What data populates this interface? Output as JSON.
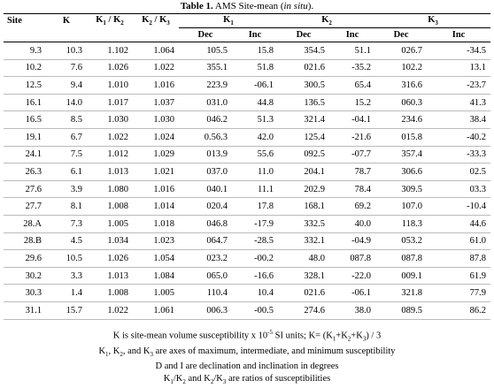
{
  "title": {
    "label": "Table 1.",
    "text": " AMS Site-mean (",
    "italic": "in situ",
    "end": ")."
  },
  "header": {
    "site": "Site",
    "k": "K",
    "ratio_12": [
      {
        "t": "K"
      },
      {
        "sub": "1"
      },
      {
        "t": " / K"
      },
      {
        "sub": "2"
      }
    ],
    "ratio_23": [
      {
        "t": "K"
      },
      {
        "sub": "2"
      },
      {
        "t": " / K"
      },
      {
        "sub": "3"
      }
    ],
    "k1": [
      {
        "t": "K"
      },
      {
        "sub": "1"
      }
    ],
    "k2": [
      {
        "t": "K"
      },
      {
        "sub": "2"
      }
    ],
    "k3": [
      {
        "t": "K"
      },
      {
        "sub": "3"
      }
    ],
    "sub": [
      "Dec",
      "Inc",
      "Dec",
      "Inc",
      "Dec",
      "Inc"
    ]
  },
  "table": {
    "rows": [
      [
        "9.3",
        "10.3",
        "1.102",
        "1.064",
        "105.5",
        "15.8",
        "354.5",
        "51.1",
        "026.7",
        "-34.5"
      ],
      [
        "10.2",
        "7.6",
        "1.026",
        "1.022",
        "355.1",
        "51.8",
        "021.6",
        "-35.2",
        "102.2",
        "13.1"
      ],
      [
        "12.5",
        "9.4",
        "1.010",
        "1.016",
        "223.9",
        "-06.1",
        "300.5",
        "65.4",
        "316.6",
        "-23.7"
      ],
      [
        "16.1",
        "14.0",
        "1.017",
        "1.037",
        "031.0",
        "44.8",
        "136.5",
        "15.2",
        "060.3",
        "41.3"
      ],
      [
        "16.5",
        "8.5",
        "1.030",
        "1.030",
        "046.2",
        "51.3",
        "321.4",
        "-04.1",
        "234.6",
        "38.4"
      ],
      [
        "19.1",
        "6.7",
        "1.022",
        "1.024",
        "0.56.3",
        "42.0",
        "125.4",
        "-21.6",
        "015.8",
        "-40.2"
      ],
      [
        "24.1",
        "7.5",
        "1.012",
        "1.029",
        "013.9",
        "55.6",
        "092.5",
        "-07.7",
        "357.4",
        "-33.3"
      ],
      [
        "26.3",
        "6.1",
        "1.013",
        "1.021",
        "037.0",
        "11.0",
        "204.1",
        "78.7",
        "306.6",
        "02.5"
      ],
      [
        "27.6",
        "3.9",
        "1.080",
        "1.016",
        "040.1",
        "11.1",
        "202.9",
        "78.4",
        "309.5",
        "03.3"
      ],
      [
        "27.7",
        "8.1",
        "1.008",
        "1.014",
        "020.4",
        "17.8",
        "168.1",
        "69.2",
        "107.0",
        "-10.4"
      ],
      [
        "28.A",
        "7.3",
        "1.005",
        "1.018",
        "046.8",
        "-17.9",
        "332.5",
        "40.0",
        "118.3",
        "44.6"
      ],
      [
        "28.B",
        "4.5",
        "1.034",
        "1.023",
        "064.7",
        "-28.5",
        "332.1",
        "-04.9",
        "053.2",
        "61.0"
      ],
      [
        "29.6",
        "10.5",
        "1.026",
        "1.054",
        "023.2",
        "-00.2",
        "48.0",
        "087.8",
        "087.8",
        "87.8"
      ],
      [
        "30.2",
        "3.3",
        "1.013",
        "1.084",
        "065.0",
        "-16.6",
        "328.1",
        "-22.0",
        "009.1",
        "61.9"
      ],
      [
        "30.3",
        "1.4",
        "1.008",
        "1.005",
        "110.4",
        "10.4",
        "021.6",
        "-06.1",
        "321.8",
        "77.9"
      ],
      [
        "31.1",
        "15.7",
        "1.022",
        "1.061",
        "006.3",
        "-00.5",
        "274.6",
        "38.0",
        "089.5",
        "86.2"
      ]
    ]
  },
  "notes": [
    [
      {
        "t": "K is site-mean volume susceptibility  x 10"
      },
      {
        "sup": "-5"
      },
      {
        "t": " SI units; K= (K"
      },
      {
        "sub": "1"
      },
      {
        "t": "+K"
      },
      {
        "sub": "2"
      },
      {
        "t": "+K"
      },
      {
        "sub": "3"
      },
      {
        "t": ") / 3"
      }
    ],
    [
      {
        "t": "K"
      },
      {
        "sub": "1"
      },
      {
        "t": ", K"
      },
      {
        "sub": "2"
      },
      {
        "t": ", and K"
      },
      {
        "sub": "3"
      },
      {
        "t": " are axes of maximum, intermediate, and minimum susceptibility"
      }
    ],
    [
      {
        "t": "D and I are declination and inclination in degrees"
      }
    ],
    [
      {
        "t": "K"
      },
      {
        "sub": "1"
      },
      {
        "t": "/K"
      },
      {
        "sub": "2"
      },
      {
        "t": " and K"
      },
      {
        "sub": "2"
      },
      {
        "t": "/K"
      },
      {
        "sub": "3"
      },
      {
        "t": " are ratios of susceptibilities"
      }
    ]
  ]
}
